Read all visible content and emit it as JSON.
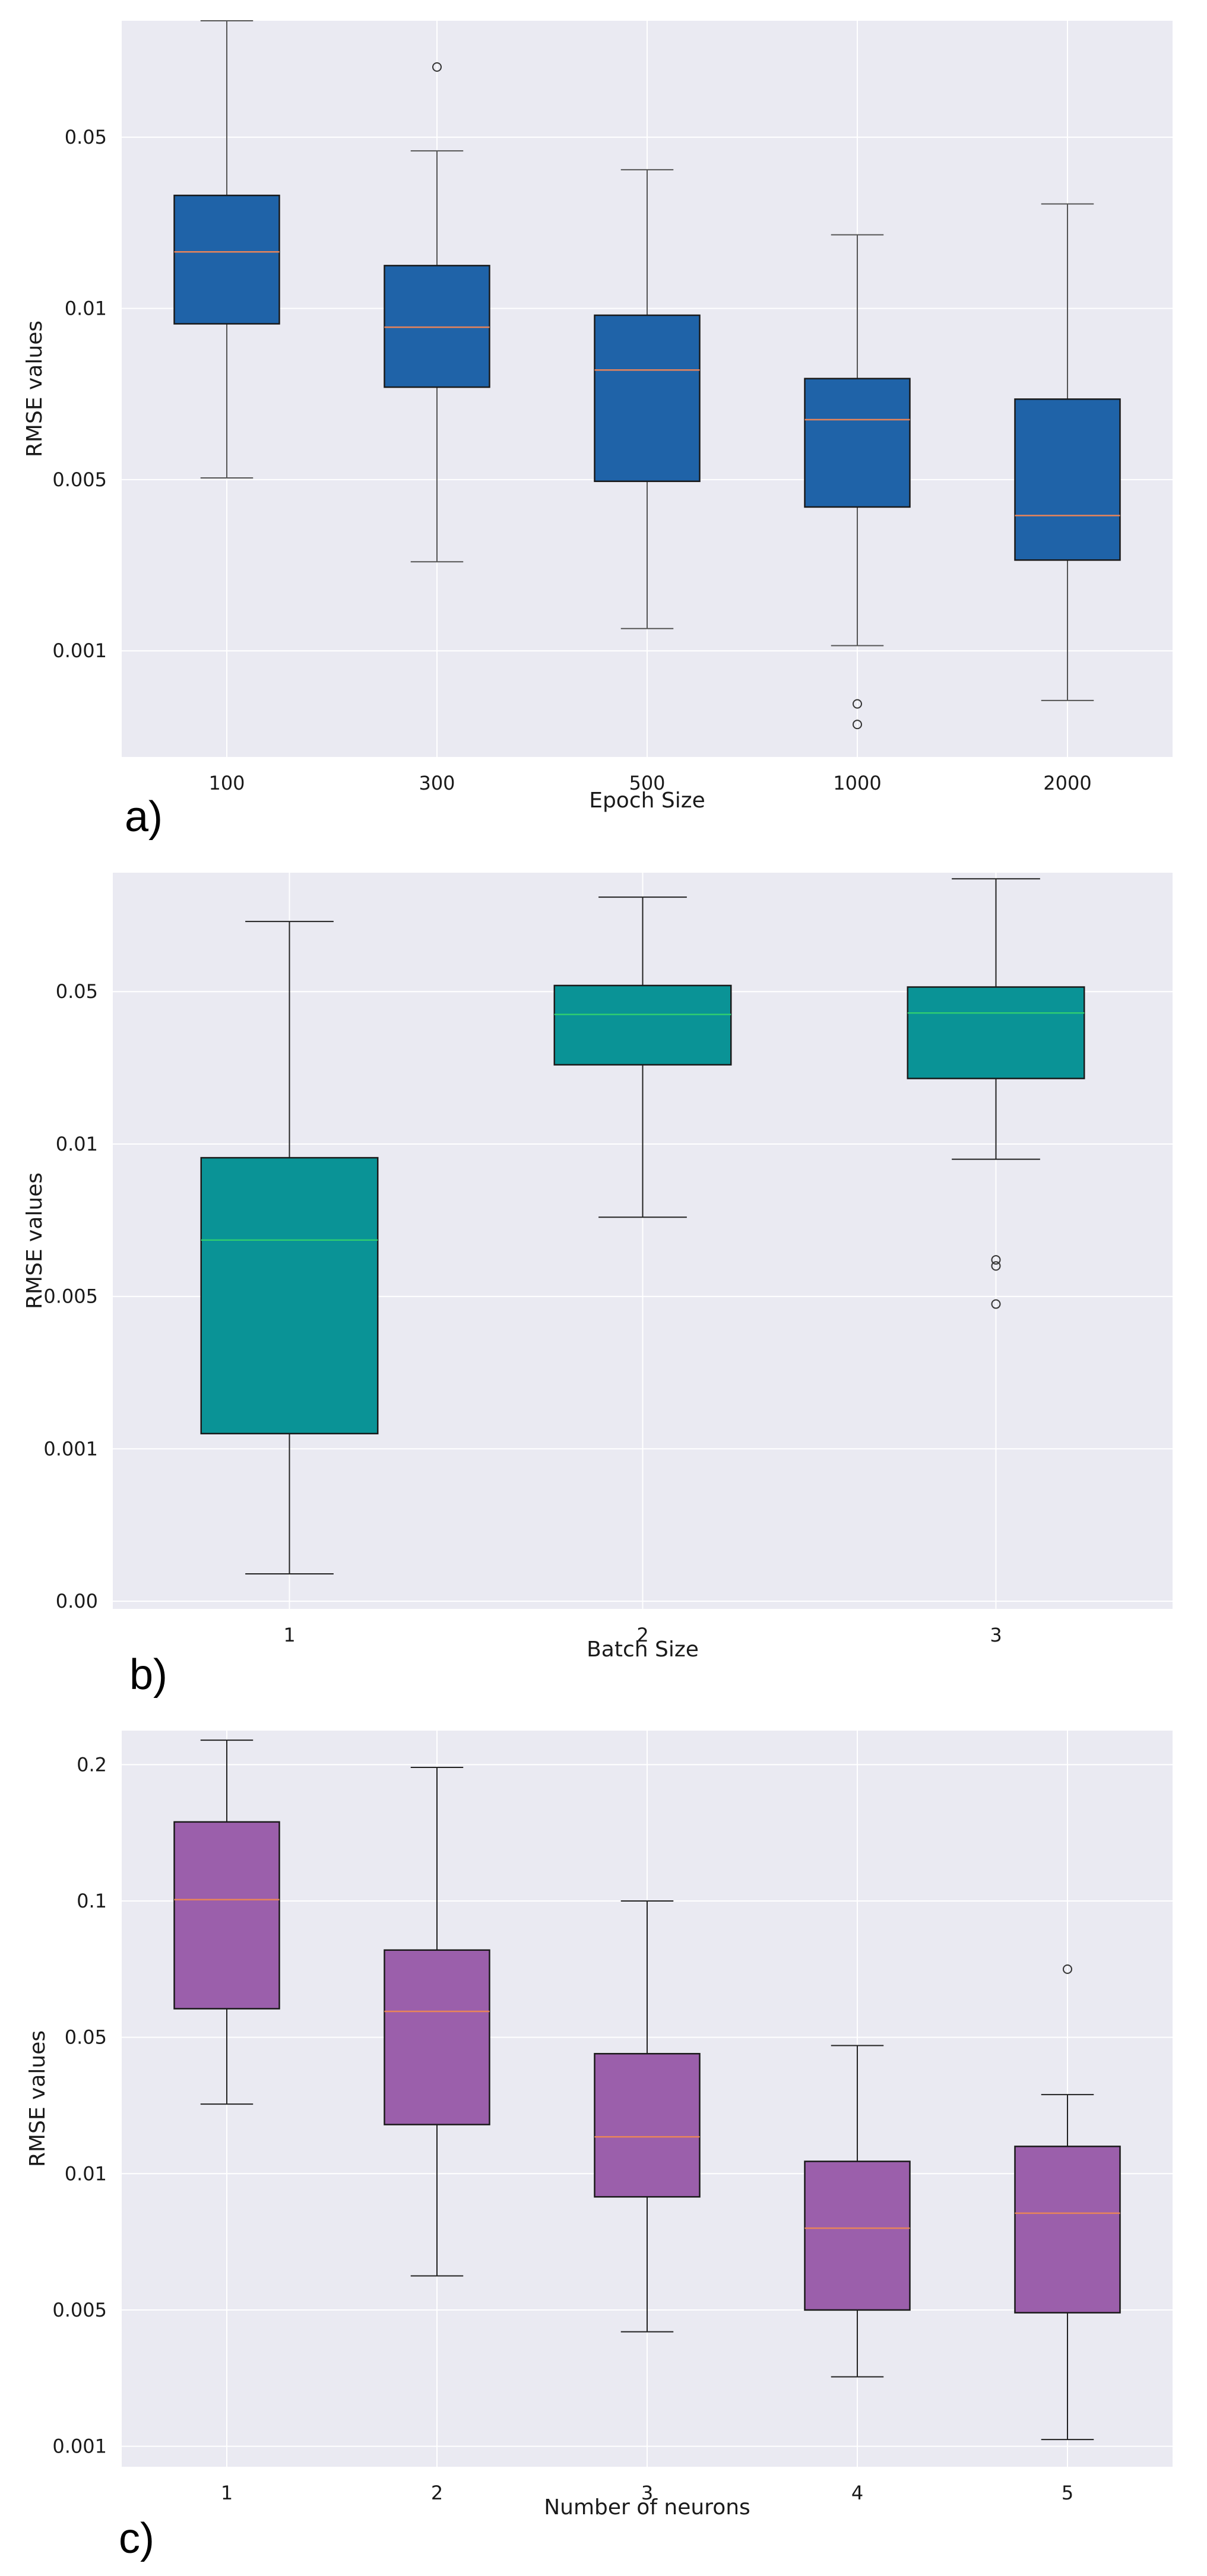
{
  "chart_data": [
    {
      "type": "box",
      "panel_label": "a)",
      "xlabel": "Epoch Size",
      "ylabel": "RMSE values",
      "yscale": "labelled-rank",
      "ytick_labels": [
        "0.001",
        "0.005",
        "0.01",
        "0.05"
      ],
      "ylim_rank": [
        -0.62,
        3.68
      ],
      "grid": true,
      "colors": {
        "box": "#1f63a8",
        "median": "#e8845a",
        "whisker": "#555555",
        "outlier": "#333333"
      },
      "categories": [
        "100",
        "300",
        "500",
        "1000",
        "2000"
      ],
      "boxes": [
        {
          "whisker_low": 1.01,
          "q1": 1.91,
          "median": 2.33,
          "q3": 2.66,
          "whisker_high": 3.68,
          "outliers": []
        },
        {
          "whisker_low": 0.52,
          "q1": 1.54,
          "median": 1.89,
          "q3": 2.25,
          "whisker_high": 2.92,
          "outliers": [
            3.41
          ]
        },
        {
          "whisker_low": 0.13,
          "q1": 0.99,
          "median": 1.64,
          "q3": 1.96,
          "whisker_high": 2.81,
          "outliers": []
        },
        {
          "whisker_low": 0.03,
          "q1": 0.84,
          "median": 1.35,
          "q3": 1.59,
          "whisker_high": 2.43,
          "outliers": [
            -0.31,
            -0.43
          ]
        },
        {
          "whisker_low": -0.29,
          "q1": 0.53,
          "median": 0.79,
          "q3": 1.47,
          "whisker_high": 2.61,
          "outliers": []
        }
      ]
    },
    {
      "type": "box",
      "panel_label": "b)",
      "xlabel": "Batch Size",
      "ylabel": "RMSE values",
      "yscale": "labelled-rank",
      "ytick_labels": [
        "0.00",
        "0.001",
        "0.005",
        "0.01",
        "0.05"
      ],
      "ylim_rank": [
        -0.05,
        4.78
      ],
      "grid": true,
      "colors": {
        "box": "#0a9396",
        "median": "#2ecc71",
        "whisker": "#222222",
        "outlier": "#333333"
      },
      "categories": [
        "1",
        "2",
        "3"
      ],
      "boxes": [
        {
          "whisker_low": 0.18,
          "q1": 1.1,
          "median": 2.37,
          "q3": 2.91,
          "whisker_high": 4.46,
          "outliers": []
        },
        {
          "whisker_low": 2.52,
          "q1": 3.52,
          "median": 3.85,
          "q3": 4.04,
          "whisker_high": 4.62,
          "outliers": []
        },
        {
          "whisker_low": 2.9,
          "q1": 3.43,
          "median": 3.86,
          "q3": 4.03,
          "whisker_high": 4.74,
          "outliers": [
            2.24,
            2.2,
            1.95
          ]
        }
      ]
    },
    {
      "type": "box",
      "panel_label": "c)",
      "xlabel": "Number of neurons",
      "ylabel": "RMSE values",
      "yscale": "labelled-rank",
      "ytick_labels": [
        "0.001",
        "0.005",
        "0.01",
        "0.05",
        "0.1",
        "0.2"
      ],
      "ylim_rank": [
        -0.15,
        5.25
      ],
      "grid": true,
      "colors": {
        "box": "#9b5fab",
        "median": "#e8845a",
        "whisker": "#222222",
        "outlier": "#333333"
      },
      "categories": [
        "1",
        "2",
        "3",
        "4",
        "5"
      ],
      "boxes": [
        {
          "whisker_low": 2.51,
          "q1": 3.21,
          "median": 4.01,
          "q3": 4.58,
          "whisker_high": 5.18,
          "outliers": []
        },
        {
          "whisker_low": 1.25,
          "q1": 2.36,
          "median": 3.19,
          "q3": 3.64,
          "whisker_high": 4.98,
          "outliers": []
        },
        {
          "whisker_low": 0.84,
          "q1": 1.83,
          "median": 2.27,
          "q3": 2.88,
          "whisker_high": 4.0,
          "outliers": []
        },
        {
          "whisker_low": 0.51,
          "q1": 1.0,
          "median": 1.6,
          "q3": 2.09,
          "whisker_high": 2.94,
          "outliers": []
        },
        {
          "whisker_low": 0.05,
          "q1": 0.98,
          "median": 1.71,
          "q3": 2.2,
          "whisker_high": 2.58,
          "outliers": [
            3.5
          ]
        }
      ]
    }
  ]
}
